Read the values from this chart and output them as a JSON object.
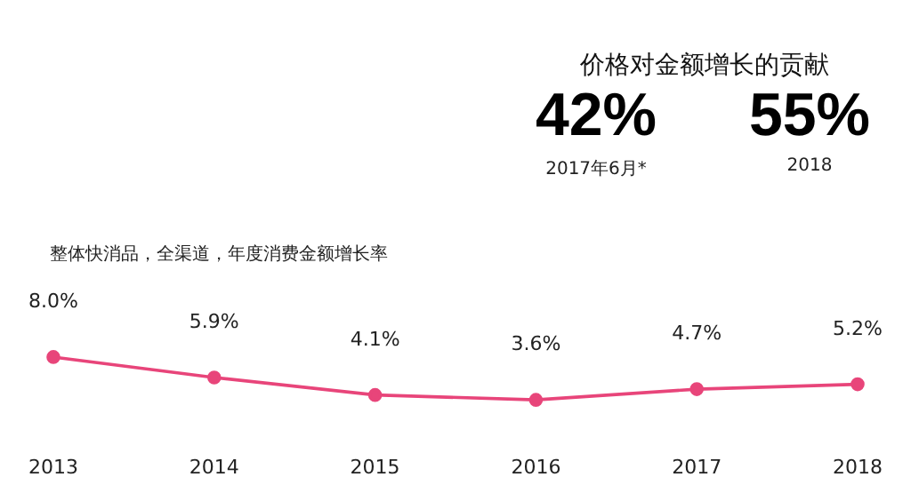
{
  "chart_data": [
    {
      "type": "line",
      "title": "整体快消品，全渠道，年度消费金额增长率",
      "categories": [
        "2013",
        "2014",
        "2015",
        "2016",
        "2017",
        "2018"
      ],
      "series": [
        {
          "color": "#e8457a",
          "values": [
            8.0,
            5.9,
            4.1,
            3.6,
            4.7,
            5.2
          ],
          "value_labels": [
            "8.0%",
            "5.9%",
            "4.1%",
            "3.6%",
            "4.7%",
            "5.2%"
          ]
        }
      ],
      "marker": "circle",
      "line_style": "solid",
      "grid": false,
      "legend": false,
      "tick_labels": "x"
    },
    {
      "type": "other",
      "title": "价格对金额增长的贡献",
      "annotations": [
        "42%",
        "2017年6月*",
        "55%",
        "2018"
      ]
    }
  ]
}
